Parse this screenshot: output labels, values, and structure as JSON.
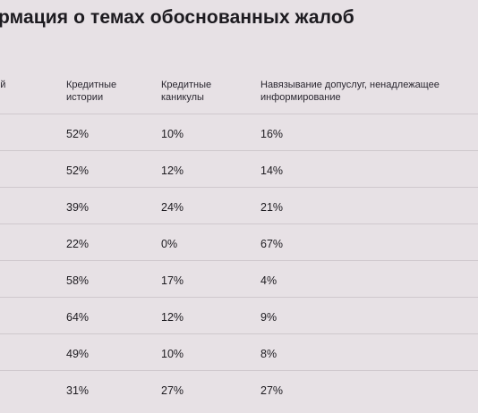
{
  "title": "рмация о темах обоснованных жалоб",
  "headers": {
    "first": "ной",
    "credit_history": "Кредитные\nистории",
    "credit_holidays": "Кредитные\nканикулы",
    "imposing": "Навязывание допуслуг, ненадлежащее\nинформирование"
  },
  "rows": [
    {
      "first": "",
      "credit_history": "52%",
      "credit_holidays": "10%",
      "imposing": "16%"
    },
    {
      "first": "•",
      "credit_history": "52%",
      "credit_holidays": "12%",
      "imposing": "14%"
    },
    {
      "first": "•",
      "credit_history": "39%",
      "credit_holidays": "24%",
      "imposing": "21%"
    },
    {
      "first": "",
      "credit_history": "22%",
      "credit_holidays": "0%",
      "imposing": "67%"
    },
    {
      "first": "",
      "credit_history": "58%",
      "credit_holidays": "17%",
      "imposing": "4%"
    },
    {
      "first": "",
      "credit_history": "64%",
      "credit_holidays": "12%",
      "imposing": "9%"
    },
    {
      "first": "",
      "credit_history": "49%",
      "credit_holidays": "10%",
      "imposing": "8%"
    },
    {
      "first": "",
      "credit_history": "31%",
      "credit_holidays": "27%",
      "imposing": "27%"
    }
  ]
}
